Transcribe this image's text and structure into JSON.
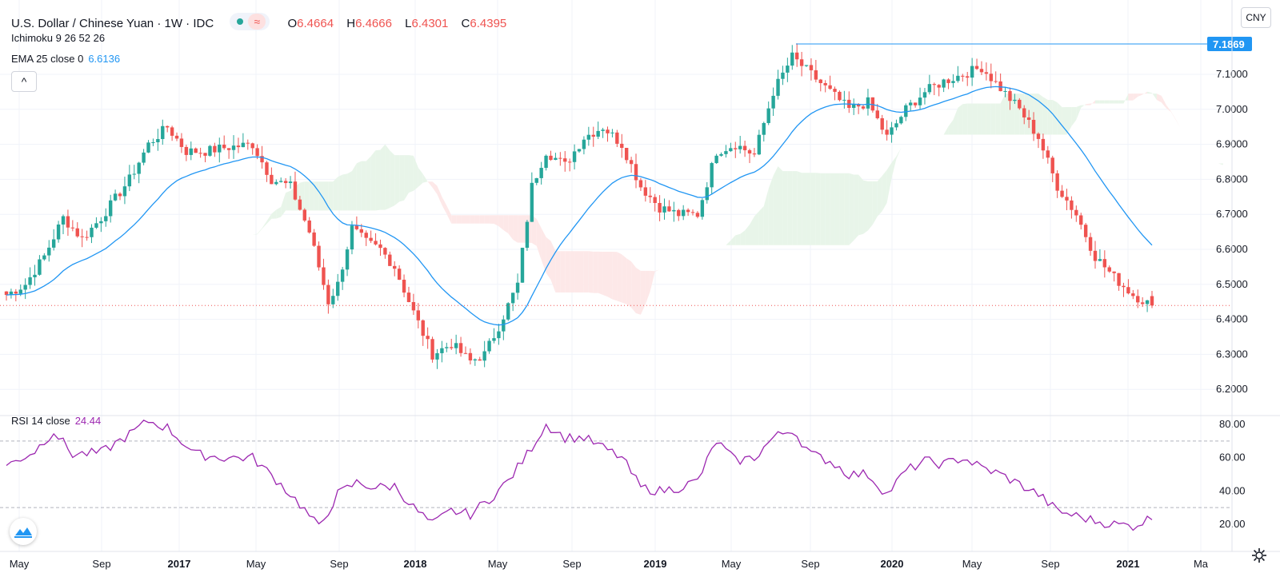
{
  "header": {
    "title": "U.S. Dollar / Chinese Yuan · 1W · IDC",
    "ohlc": [
      {
        "label": "O",
        "value": "6.4664"
      },
      {
        "label": "H",
        "value": "6.4666"
      },
      {
        "label": "L",
        "value": "6.4301"
      },
      {
        "label": "C",
        "value": "6.4395"
      }
    ],
    "status_wave": "≈"
  },
  "indicators": {
    "ichimoku": "Ichimoku 9 26 52 26",
    "ema_label": "EMA 25 close 0",
    "ema_value": "6.6136",
    "rsi_label": "RSI 14 close",
    "rsi_value": "24.44",
    "collapse_glyph": "^"
  },
  "currency_button": "CNY",
  "icons": {
    "logo": "tradingview-logo-icon",
    "settings": "gear-icon",
    "collapse": "chevron-up-icon"
  },
  "colors": {
    "up": "#26a69a",
    "down": "#ef5350",
    "ema": "#2196f3",
    "rsi": "#9c27b0",
    "cloud_bull": "#e8f5e9",
    "cloud_bear": "#fde8e8",
    "hline": "#2196f3"
  },
  "chart_data": [
    {
      "type": "candlestick",
      "title": "U.S. Dollar / Chinese Yuan · 1W · IDC",
      "ylim": [
        6.15,
        7.25
      ],
      "yticks": [
        "7.1000",
        "7.0000",
        "6.9000",
        "6.8000",
        "6.7000",
        "6.6000",
        "6.5000",
        "6.4000",
        "6.3000",
        "6.2000"
      ],
      "xticks": [
        "May",
        "Sep",
        "2017",
        "May",
        "Sep",
        "2018",
        "May",
        "Sep",
        "2019",
        "May",
        "Sep",
        "2020",
        "May",
        "Sep",
        "2021",
        "Ma"
      ],
      "price_line": "7.1869",
      "last_close": 6.4395,
      "close_anchors": [
        [
          0,
          6.47
        ],
        [
          4,
          6.5
        ],
        [
          8,
          6.58
        ],
        [
          12,
          6.69
        ],
        [
          16,
          6.63
        ],
        [
          20,
          6.69
        ],
        [
          26,
          6.8
        ],
        [
          30,
          6.9
        ],
        [
          34,
          6.95
        ],
        [
          38,
          6.88
        ],
        [
          42,
          6.88
        ],
        [
          46,
          6.89
        ],
        [
          52,
          6.9
        ],
        [
          56,
          6.8
        ],
        [
          60,
          6.78
        ],
        [
          64,
          6.65
        ],
        [
          68,
          6.45
        ],
        [
          70,
          6.5
        ],
        [
          73,
          6.66
        ],
        [
          76,
          6.62
        ],
        [
          79,
          6.6
        ],
        [
          82,
          6.55
        ],
        [
          86,
          6.42
        ],
        [
          90,
          6.3
        ],
        [
          94,
          6.33
        ],
        [
          98,
          6.28
        ],
        [
          101,
          6.3
        ],
        [
          104,
          6.38
        ],
        [
          108,
          6.5
        ],
        [
          111,
          6.78
        ],
        [
          114,
          6.88
        ],
        [
          118,
          6.84
        ],
        [
          122,
          6.92
        ],
        [
          126,
          6.95
        ],
        [
          130,
          6.9
        ],
        [
          134,
          6.78
        ],
        [
          138,
          6.72
        ],
        [
          142,
          6.7
        ],
        [
          146,
          6.7
        ],
        [
          150,
          6.88
        ],
        [
          154,
          6.9
        ],
        [
          158,
          6.87
        ],
        [
          162,
          7.05
        ],
        [
          166,
          7.15
        ],
        [
          170,
          7.1
        ],
        [
          174,
          7.05
        ],
        [
          178,
          7.0
        ],
        [
          182,
          7.02
        ],
        [
          186,
          6.92
        ],
        [
          190,
          7.0
        ],
        [
          194,
          7.05
        ],
        [
          198,
          7.08
        ],
        [
          202,
          7.1
        ],
        [
          206,
          7.12
        ],
        [
          210,
          7.06
        ],
        [
          214,
          7.0
        ],
        [
          218,
          6.92
        ],
        [
          222,
          6.78
        ],
        [
          226,
          6.7
        ],
        [
          230,
          6.58
        ],
        [
          234,
          6.52
        ],
        [
          238,
          6.47
        ],
        [
          242,
          6.44
        ]
      ]
    },
    {
      "type": "line",
      "title": "RSI 14 close",
      "ylim": [
        10,
        90
      ],
      "yticks": [
        "80.00",
        "60.00",
        "40.00",
        "20.00"
      ],
      "bands": [
        70,
        30
      ],
      "anchors": [
        [
          0,
          55
        ],
        [
          6,
          64
        ],
        [
          10,
          76
        ],
        [
          14,
          62
        ],
        [
          20,
          63
        ],
        [
          26,
          74
        ],
        [
          30,
          82
        ],
        [
          34,
          78
        ],
        [
          40,
          62
        ],
        [
          46,
          60
        ],
        [
          52,
          60
        ],
        [
          58,
          44
        ],
        [
          62,
          32
        ],
        [
          66,
          18
        ],
        [
          70,
          38
        ],
        [
          74,
          45
        ],
        [
          78,
          42
        ],
        [
          82,
          43
        ],
        [
          86,
          30
        ],
        [
          90,
          20
        ],
        [
          94,
          28
        ],
        [
          98,
          26
        ],
        [
          102,
          35
        ],
        [
          106,
          46
        ],
        [
          110,
          62
        ],
        [
          114,
          80
        ],
        [
          118,
          72
        ],
        [
          122,
          72
        ],
        [
          126,
          66
        ],
        [
          130,
          60
        ],
        [
          134,
          42
        ],
        [
          138,
          40
        ],
        [
          142,
          42
        ],
        [
          146,
          46
        ],
        [
          150,
          70
        ],
        [
          154,
          58
        ],
        [
          158,
          60
        ],
        [
          162,
          72
        ],
        [
          166,
          77
        ],
        [
          170,
          62
        ],
        [
          174,
          58
        ],
        [
          178,
          50
        ],
        [
          182,
          50
        ],
        [
          186,
          38
        ],
        [
          190,
          52
        ],
        [
          194,
          58
        ],
        [
          198,
          56
        ],
        [
          202,
          60
        ],
        [
          206,
          54
        ],
        [
          210,
          50
        ],
        [
          214,
          44
        ],
        [
          218,
          38
        ],
        [
          222,
          28
        ],
        [
          226,
          25
        ],
        [
          230,
          22
        ],
        [
          234,
          20
        ],
        [
          238,
          19
        ],
        [
          242,
          24
        ]
      ]
    }
  ]
}
